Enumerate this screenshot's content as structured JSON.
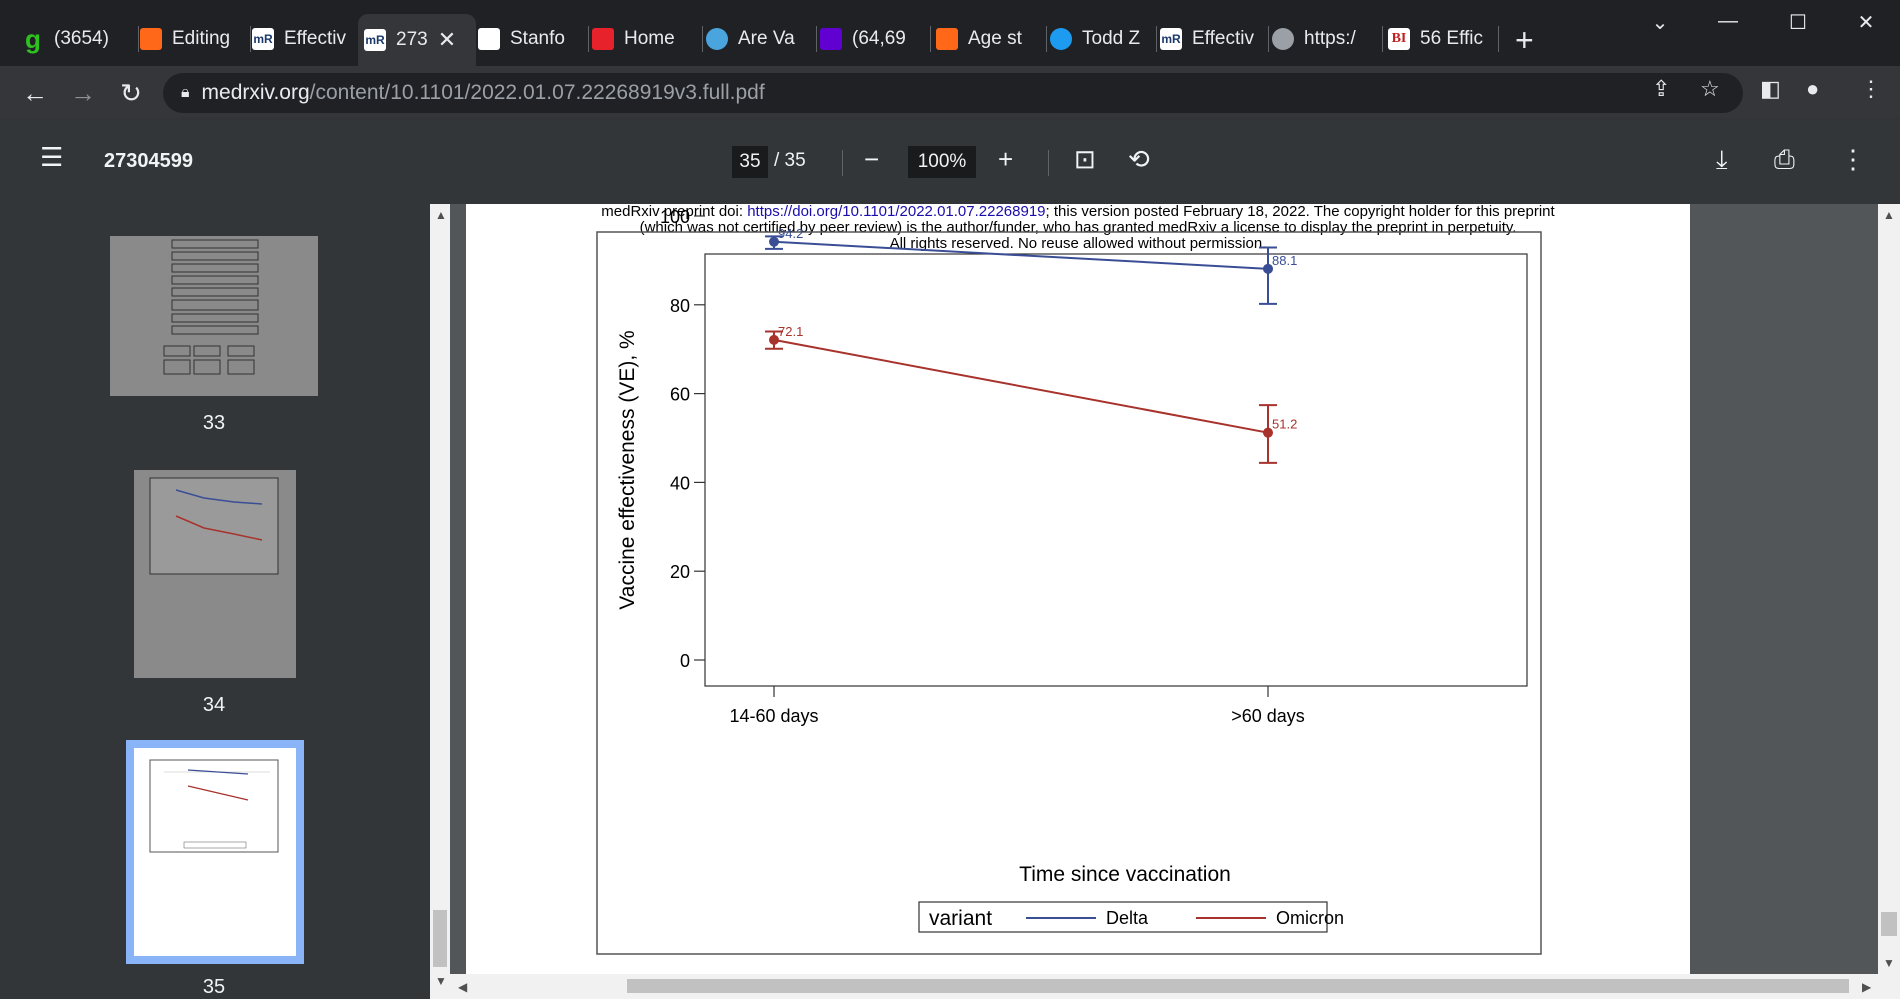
{
  "tabs": [
    {
      "label": "(3654)",
      "icon": "g-icon",
      "icon_text": "g",
      "icon_color": "#2ec11f"
    },
    {
      "label": "Editing",
      "icon": "substack-icon",
      "icon_text": "",
      "icon_color": "#ff6719"
    },
    {
      "label": "Effectiv",
      "icon": "medrxiv-icon",
      "icon_text": "mR",
      "icon_color": "#ffffff"
    },
    {
      "label": "273",
      "icon": "medrxiv-icon",
      "icon_text": "mR",
      "icon_color": "#ffffff"
    },
    {
      "label": "Stanfo",
      "icon": "feather-icon",
      "icon_text": "",
      "icon_color": "#ffffff"
    },
    {
      "label": "Home",
      "icon": "home-icon",
      "icon_text": "",
      "icon_color": "#e8222a"
    },
    {
      "label": "Are Va",
      "icon": "globe-icon",
      "icon_text": "",
      "icon_color": "#4aa4de"
    },
    {
      "label": "(64,69",
      "icon": "yahoo-mail-icon",
      "icon_text": "",
      "icon_color": "#6001d2"
    },
    {
      "label": "Age st",
      "icon": "substack-icon",
      "icon_text": "",
      "icon_color": "#ff6719"
    },
    {
      "label": "Todd Z",
      "icon": "twitter-icon",
      "icon_text": "",
      "icon_color": "#1d9bf0"
    },
    {
      "label": "Effectiv",
      "icon": "medrxiv-icon",
      "icon_text": "mR",
      "icon_color": "#ffffff"
    },
    {
      "label": "https:/",
      "icon": "globe-icon",
      "icon_text": "",
      "icon_color": "#9aa0a6"
    },
    {
      "label": "56 Effic",
      "icon": "bi-icon",
      "icon_text": "BI",
      "icon_color": "#ffffff"
    }
  ],
  "address": {
    "host": "medrxiv.org",
    "path": "/content/10.1101/2022.01.07.22268919v3.full.pdf"
  },
  "pdf": {
    "title": "27304599",
    "current_page": "35",
    "total_pages": "/ 35",
    "zoom": "100%"
  },
  "thumbnails": [
    {
      "page": "33"
    },
    {
      "page": "34"
    },
    {
      "page": "35"
    }
  ],
  "banner": {
    "line1_prefix": "medRxiv preprint doi: ",
    "line1_link": "https://doi.org/10.1101/2022.01.07.22268919",
    "line1_suffix": "; this version posted February 18, 2022. The copyright holder for this preprint",
    "line2": "(which was not certified by peer review) is the author/funder, who has granted medRxiv a license to display the preprint in perpetuity.",
    "line3": "All rights reserved. No reuse allowed without permission."
  },
  "colors": {
    "delta": "#3a4e96",
    "omicron": "#a8322c"
  },
  "chart_data": {
    "type": "line",
    "categories": [
      "14-60 days",
      ">60 days"
    ],
    "xlabel": "Time since vaccination",
    "ylabel": "Vaccine effectiveness (VE), %",
    "ylim": [
      0,
      100
    ],
    "yticks": [
      "0",
      "20",
      "40",
      "60",
      "80",
      "100"
    ],
    "legend_title": "variant",
    "legend_position": "bottom",
    "series": [
      {
        "name": "Delta",
        "values": [
          94.2,
          88.1
        ],
        "ci_low": [
          92.6,
          80.2
        ],
        "ci_high": [
          95.4,
          92.9
        ],
        "labels": [
          "94.2",
          "88.1"
        ]
      },
      {
        "name": "Omicron",
        "values": [
          72.1,
          51.2
        ],
        "ci_low": [
          70.1,
          44.4
        ],
        "ci_high": [
          74.0,
          57.4
        ],
        "labels": [
          "72.1",
          "51.2"
        ]
      }
    ]
  }
}
